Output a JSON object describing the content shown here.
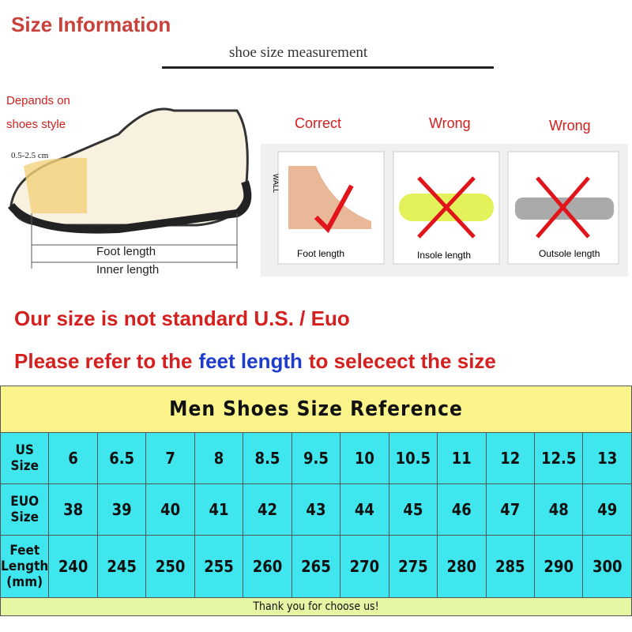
{
  "header": {
    "title": "Size Information",
    "subtitle": "shoe size measurement"
  },
  "diagram": {
    "note": [
      "Depands on",
      "shoes style"
    ],
    "range": "0.5-2.5 cm",
    "foot_length": "Foot length",
    "inner_length": "Inner length"
  },
  "panels": [
    {
      "verdict": "Correct",
      "caption": "Foot length",
      "wall": "WALL"
    },
    {
      "verdict": "Wrong",
      "caption": "Insole length"
    },
    {
      "verdict": "Wrong",
      "caption": "Outsole length"
    }
  ],
  "notice": {
    "line1": "Our size is not standard U.S. / Euo",
    "line2": [
      "Please refer to the",
      "feet length",
      "to selecect the size"
    ]
  },
  "table": {
    "title": "Men Shoes Size Reference",
    "rows": [
      {
        "label": [
          "US Size"
        ],
        "cells": [
          6,
          6.5,
          7,
          8,
          8.5,
          9.5,
          10,
          10.5,
          11,
          12,
          12.5,
          13
        ]
      },
      {
        "label": [
          "EUO Size"
        ],
        "cells": [
          38,
          39,
          40,
          41,
          42,
          43,
          44,
          45,
          46,
          47,
          48,
          49
        ]
      },
      {
        "label": [
          "Feet Length",
          "(mm)"
        ],
        "cells": [
          240,
          245,
          250,
          255,
          260,
          265,
          270,
          275,
          280,
          285,
          290,
          300
        ]
      }
    ],
    "footer": "Thank you for choose us!"
  }
}
